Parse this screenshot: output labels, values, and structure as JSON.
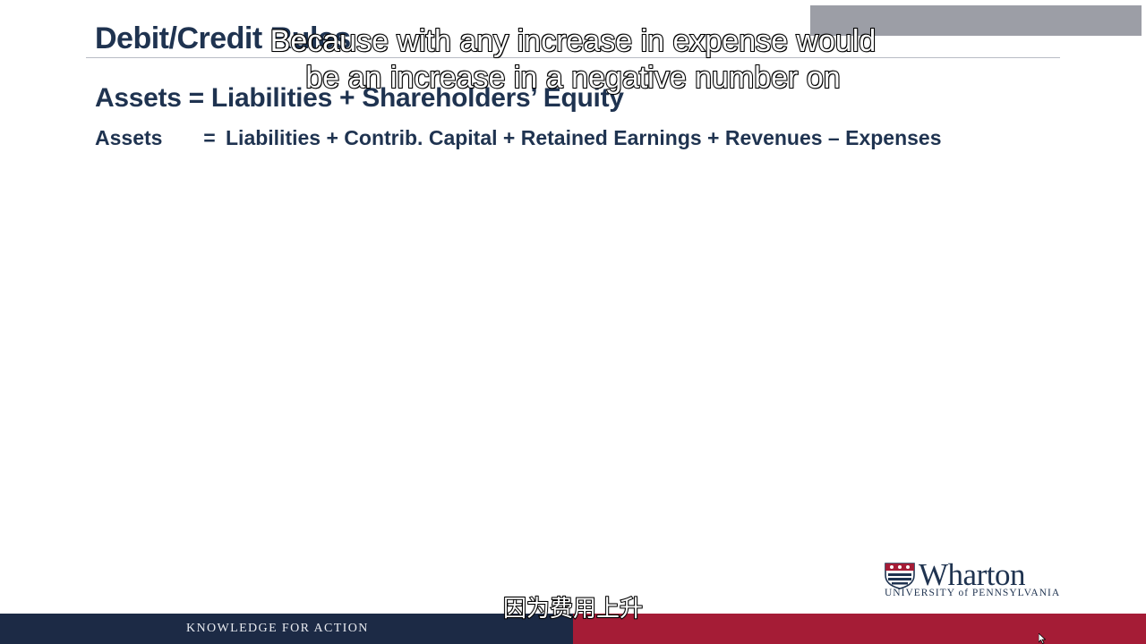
{
  "slide": {
    "title": "Debit/Credit Rules",
    "equation_main": "Assets = Liabilities + Shareholders’ Equity",
    "equation_expanded": {
      "lhs": "Assets",
      "eq": "=",
      "rhs": "Liabilities + Contrib. Capital + Retained Earnings + Revenues – Expenses"
    }
  },
  "subtitles": {
    "english_line1": "Because with any increase in expense would",
    "english_line2": "be an increase in a negative number on",
    "chinese": "因为费用上升"
  },
  "branding": {
    "wordmark": "Wharton",
    "university": "UNIVERSITY of PENNSYLVANIA",
    "tagline": "KNOWLEDGE FOR ACTION"
  },
  "icons": {
    "logo": "penn-shield-icon",
    "cursor": "mouse-cursor-icon"
  },
  "colors": {
    "title_text": "#1f3350",
    "footer_navy": "#1c2a45",
    "footer_red": "#a51c36",
    "overlay_box": "#9c9ea6"
  }
}
